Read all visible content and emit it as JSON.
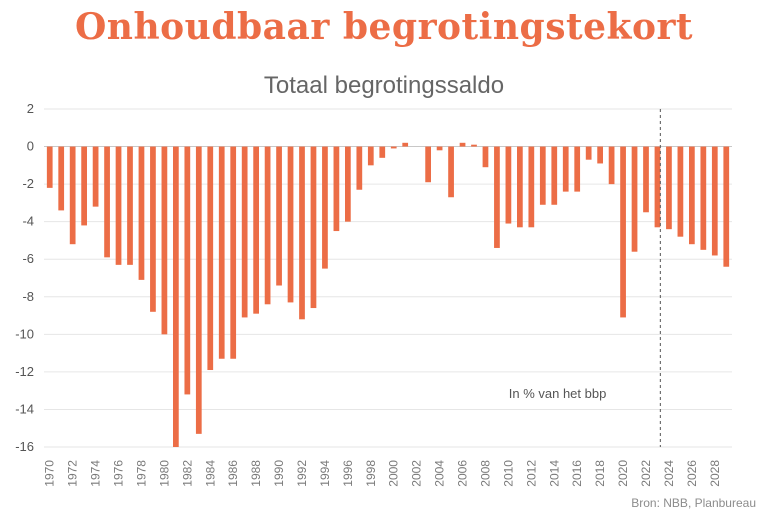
{
  "headline": "Onhoudbaar begrotingstekort",
  "source": "Bron: NBB, Planbureau",
  "chart_data": {
    "type": "bar",
    "title": "Totaal begrotingssaldo",
    "annotation": "In % van het bbp",
    "xlabel": "",
    "ylabel": "",
    "ylim": [
      -16,
      2
    ],
    "yticks": [
      2,
      0,
      -2,
      -4,
      -6,
      -8,
      -10,
      -12,
      -14,
      -16
    ],
    "grid": true,
    "bar_color": "#ec6d46",
    "forecast_divider_after": "2023",
    "categories": [
      "1970",
      "1971",
      "1972",
      "1973",
      "1974",
      "1975",
      "1976",
      "1977",
      "1978",
      "1979",
      "1980",
      "1981",
      "1982",
      "1983",
      "1984",
      "1985",
      "1986",
      "1987",
      "1988",
      "1989",
      "1990",
      "1991",
      "1992",
      "1993",
      "1994",
      "1995",
      "1996",
      "1997",
      "1998",
      "1999",
      "2000",
      "2001",
      "2002",
      "2003",
      "2004",
      "2005",
      "2006",
      "2007",
      "2008",
      "2009",
      "2010",
      "2011",
      "2012",
      "2013",
      "2014",
      "2015",
      "2016",
      "2017",
      "2018",
      "2019",
      "2020",
      "2021",
      "2022",
      "2023",
      "2024",
      "2025",
      "2026",
      "2027",
      "2028",
      "2029"
    ],
    "tick_labels": [
      "1970",
      "1972",
      "1974",
      "1976",
      "1978",
      "1980",
      "1982",
      "1984",
      "1986",
      "1988",
      "1990",
      "1992",
      "1994",
      "1996",
      "1998",
      "2000",
      "2002",
      "2004",
      "2006",
      "2008",
      "2010",
      "2012",
      "2014",
      "2016",
      "2018",
      "2020",
      "2022",
      "2024",
      "2026",
      "2028"
    ],
    "values": [
      -2.2,
      -3.4,
      -5.2,
      -4.2,
      -3.2,
      -5.9,
      -6.3,
      -6.3,
      -7.1,
      -8.8,
      -10.0,
      -16.0,
      -13.2,
      -15.3,
      -11.9,
      -11.3,
      -11.3,
      -9.1,
      -8.9,
      -8.4,
      -7.4,
      -8.3,
      -9.2,
      -8.6,
      -6.5,
      -4.5,
      -4.0,
      -2.3,
      -1.0,
      -0.6,
      -0.1,
      0.2,
      0.0,
      -1.9,
      -0.2,
      -2.7,
      0.2,
      0.1,
      -1.1,
      -5.4,
      -4.1,
      -4.3,
      -4.3,
      -3.1,
      -3.1,
      -2.4,
      -2.4,
      -0.7,
      -0.9,
      -2.0,
      -9.1,
      -5.6,
      -3.5,
      -4.3,
      -4.4,
      -4.8,
      -5.2,
      -5.5,
      -5.8,
      -6.4
    ]
  }
}
